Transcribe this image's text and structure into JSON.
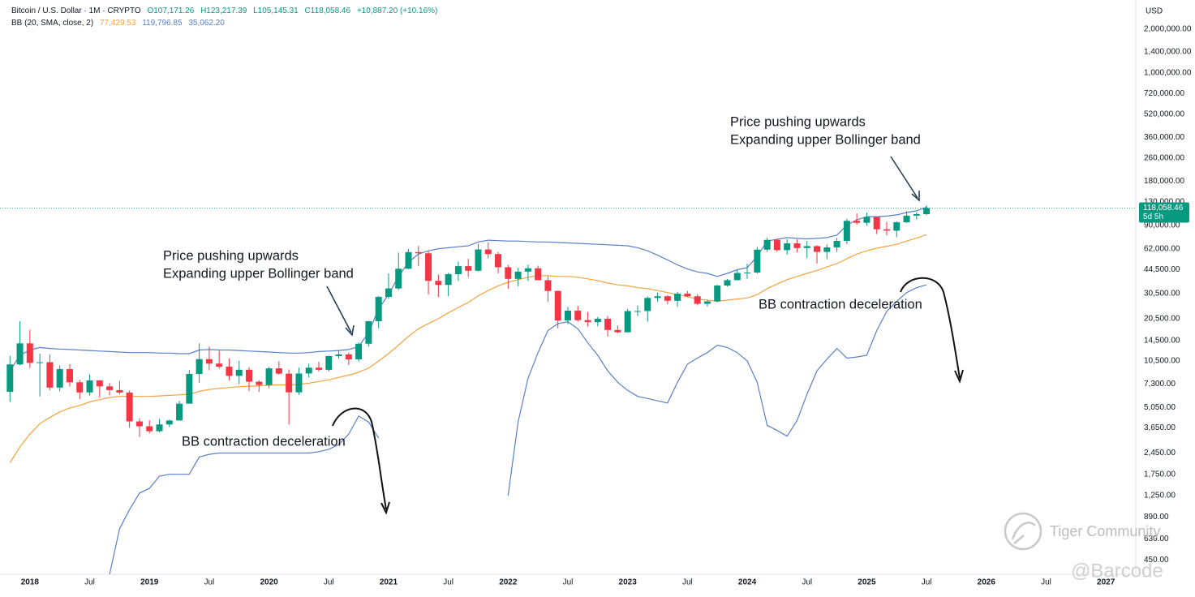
{
  "chart_data": {
    "type": "candlestick",
    "header": {
      "symbol": "Bitcoin / U.S. Dollar · 1M · CRYPTO",
      "open": "O107,171.26",
      "high": "H123,217.39",
      "low": "L105,145.31",
      "close": "C118,058.46",
      "change": "+10,887.20 (+10.16%)"
    },
    "indicator": {
      "name": "BB (20, SMA, close, 2)",
      "basis": "77,429.53",
      "upper": "119,796.85",
      "lower": "35,062.20"
    },
    "currency": "USD",
    "last_price_label": "118,058.46",
    "countdown": "5d 5h",
    "annotations": [
      {
        "lines": [
          "Price pushing upwards",
          "Expanding upper Bollinger band"
        ]
      },
      {
        "lines": [
          "Price pushing upwards",
          "Expanding upper Bollinger band"
        ]
      },
      {
        "lines": [
          "BB contraction deceleration"
        ]
      },
      {
        "lines": [
          "BB contraction deceleration"
        ]
      }
    ],
    "watermarks": [
      "Tiger Community",
      "@Barcode"
    ],
    "log_scale": true,
    "up_color": "#089981",
    "down_color": "#f23645",
    "categories": [
      "2017-11",
      "2017-12",
      "2018-01",
      "2018-02",
      "2018-03",
      "2018-04",
      "2018-05",
      "2018-06",
      "2018-07",
      "2018-08",
      "2018-09",
      "2018-10",
      "2018-11",
      "2018-12",
      "2019-01",
      "2019-02",
      "2019-03",
      "2019-04",
      "2019-05",
      "2019-06",
      "2019-07",
      "2019-08",
      "2019-09",
      "2019-10",
      "2019-11",
      "2019-12",
      "2020-01",
      "2020-02",
      "2020-03",
      "2020-04",
      "2020-05",
      "2020-06",
      "2020-07",
      "2020-08",
      "2020-09",
      "2020-10",
      "2020-11",
      "2020-12",
      "2021-01",
      "2021-02",
      "2021-03",
      "2021-04",
      "2021-05",
      "2021-06",
      "2021-07",
      "2021-08",
      "2021-09",
      "2021-10",
      "2021-11",
      "2021-12",
      "2022-01",
      "2022-02",
      "2022-03",
      "2022-04",
      "2022-05",
      "2022-06",
      "2022-07",
      "2022-08",
      "2022-09",
      "2022-10",
      "2022-11",
      "2022-12",
      "2023-01",
      "2023-02",
      "2023-03",
      "2023-04",
      "2023-05",
      "2023-06",
      "2023-07",
      "2023-08",
      "2023-09",
      "2023-10",
      "2023-11",
      "2023-12",
      "2024-01",
      "2024-02",
      "2024-03",
      "2024-04",
      "2024-05",
      "2024-06",
      "2024-07",
      "2024-08",
      "2024-09",
      "2024-10",
      "2024-11",
      "2024-12",
      "2025-01",
      "2025-02",
      "2025-03",
      "2025-04",
      "2025-05",
      "2025-06",
      "2025-07"
    ],
    "open": [
      6450,
      9950,
      13880,
      10200,
      10300,
      6900,
      9240,
      7500,
      6390,
      7730,
      7030,
      6630,
      6370,
      4040,
      3740,
      3460,
      3850,
      4100,
      5350,
      8560,
      10820,
      10080,
      9600,
      8300,
      9150,
      7570,
      7190,
      9350,
      8600,
      6400,
      8620,
      9450,
      9140,
      11350,
      11650,
      10780,
      13800,
      19700,
      28950,
      33100,
      45200,
      58800,
      57700,
      37300,
      35000,
      41500,
      47100,
      43800,
      61300,
      57000,
      46300,
      38500,
      43200,
      45500,
      37700,
      31800,
      19950,
      23300,
      20050,
      19420,
      20490,
      17160,
      16540,
      23140,
      23150,
      28480,
      29250,
      27220,
      30470,
      29230,
      25940,
      26970,
      34650,
      37720,
      42280,
      42580,
      61130,
      71330,
      60640,
      67490,
      62680,
      64620,
      58970,
      63330,
      70220,
      96400,
      93430,
      102400,
      84350,
      82550,
      94200,
      104600,
      107171.26
    ],
    "high": [
      11400,
      19700,
      17200,
      11800,
      11700,
      9800,
      10000,
      7800,
      8500,
      7760,
      7400,
      7680,
      6590,
      4250,
      4120,
      4200,
      4150,
      5600,
      9100,
      13900,
      13200,
      12330,
      10940,
      10540,
      9520,
      7750,
      9560,
      10500,
      9200,
      9470,
      10080,
      10400,
      11450,
      12470,
      12050,
      14100,
      19850,
      29300,
      41950,
      58350,
      61780,
      64850,
      59600,
      41300,
      42300,
      50500,
      52900,
      67000,
      69000,
      59100,
      47990,
      45850,
      48200,
      47450,
      40000,
      31990,
      24700,
      25200,
      22800,
      21100,
      21480,
      18400,
      23950,
      25250,
      29200,
      31000,
      29800,
      31400,
      31800,
      30200,
      27500,
      35000,
      38450,
      44700,
      48970,
      64000,
      73800,
      72800,
      72000,
      71950,
      70000,
      65600,
      66500,
      73600,
      99800,
      108300,
      109600,
      102800,
      95000,
      95800,
      112000,
      110500,
      123217.39
    ],
    "low": [
      5500,
      9800,
      9400,
      6000,
      6600,
      6500,
      7000,
      5750,
      6100,
      5880,
      6100,
      6200,
      3650,
      3150,
      3350,
      3400,
      3700,
      4100,
      5350,
      7450,
      9070,
      9320,
      7710,
      7300,
      6520,
      6430,
      6850,
      8450,
      3850,
      6150,
      8100,
      8900,
      8900,
      10900,
      9850,
      10400,
      13200,
      17600,
      28100,
      32300,
      45000,
      47000,
      30000,
      28800,
      29300,
      37300,
      39600,
      43300,
      53250,
      42000,
      32900,
      34300,
      37200,
      37700,
      26700,
      17600,
      18800,
      19550,
      18150,
      18200,
      15480,
      16250,
      16500,
      21350,
      19550,
      26950,
      25800,
      24800,
      28850,
      25350,
      24900,
      26550,
      34100,
      37600,
      38500,
      41880,
      59000,
      59100,
      56500,
      58400,
      53500,
      49000,
      52550,
      58900,
      66800,
      90500,
      89200,
      78200,
      76600,
      74400,
      93300,
      98200,
      105145.31
    ],
    "close": [
      9950,
      13880,
      10200,
      10300,
      6900,
      9240,
      7500,
      6390,
      7730,
      7030,
      6630,
      6370,
      4040,
      3740,
      3460,
      3850,
      4100,
      5350,
      8560,
      10820,
      10080,
      9600,
      8300,
      9150,
      7570,
      7190,
      9350,
      8600,
      6400,
      8620,
      9450,
      9140,
      11350,
      11650,
      10780,
      13800,
      19700,
      28950,
      33100,
      45200,
      58800,
      57700,
      37300,
      35000,
      41500,
      47100,
      43800,
      61300,
      57000,
      46300,
      38500,
      43200,
      45500,
      37700,
      31800,
      19950,
      23300,
      20050,
      19420,
      20490,
      17160,
      16540,
      23140,
      23150,
      28480,
      29250,
      27220,
      30470,
      29230,
      25940,
      26970,
      34650,
      37720,
      42280,
      42580,
      61130,
      71330,
      60640,
      67490,
      62680,
      64620,
      58970,
      63330,
      70220,
      96400,
      93430,
      102400,
      84350,
      82550,
      94200,
      104600,
      107170,
      118058.46
    ],
    "series": [
      {
        "name": "Upper",
        "color": "#5b7fc7",
        "values": [
          9000,
          11500,
          12500,
          13000,
          12800,
          12700,
          12600,
          12500,
          12400,
          12300,
          12200,
          12100,
          12000,
          12000,
          12000,
          11900,
          11900,
          11800,
          11800,
          12500,
          12600,
          12500,
          12500,
          12400,
          12300,
          12200,
          12100,
          12000,
          11900,
          11900,
          12000,
          12200,
          12300,
          12400,
          12600,
          13200,
          16500,
          24000,
          30000,
          40000,
          50000,
          57000,
          60000,
          62000,
          63000,
          64000,
          65000,
          69000,
          71000,
          70500,
          70000,
          70000,
          69500,
          69000,
          69000,
          68500,
          68000,
          67500,
          67000,
          66500,
          66000,
          65500,
          65000,
          63000,
          60000,
          56000,
          52000,
          48000,
          45000,
          43000,
          42000,
          40000,
          42000,
          44500,
          46000,
          55000,
          70000,
          72000,
          74000,
          73000,
          72500,
          73000,
          74000,
          77000,
          90000,
          98000,
          103000,
          103000,
          104000,
          106000,
          110000,
          113000,
          119796.85
        ]
      },
      {
        "name": "Basis",
        "color": "#f4a340",
        "values": [
          2100,
          2700,
          3300,
          3900,
          4300,
          4700,
          5000,
          5200,
          5500,
          5700,
          5900,
          6000,
          6000,
          6000,
          6000,
          6050,
          6100,
          6150,
          6200,
          6500,
          6700,
          6800,
          6900,
          7000,
          7050,
          7100,
          7150,
          7200,
          7200,
          7250,
          7400,
          7600,
          7800,
          8100,
          8400,
          8800,
          9400,
          10500,
          11800,
          13500,
          15500,
          17500,
          19000,
          20500,
          22500,
          24500,
          26500,
          29500,
          32000,
          34500,
          36500,
          38000,
          39500,
          40500,
          40500,
          40000,
          40000,
          39500,
          38500,
          37500,
          36000,
          35000,
          34500,
          33500,
          33000,
          32000,
          31000,
          30000,
          29000,
          28000,
          27500,
          27000,
          27500,
          28000,
          28500,
          30000,
          33000,
          35500,
          38000,
          40000,
          42000,
          44000,
          46500,
          49000,
          53000,
          57000,
          60000,
          62500,
          64500,
          66500,
          70000,
          73500,
          77429.53
        ]
      },
      {
        "name": "Lower",
        "color": "#5b7fc7",
        "values": [
          null,
          null,
          null,
          null,
          null,
          null,
          null,
          null,
          null,
          null,
          360,
          740,
          1000,
          1300,
          1400,
          1700,
          1750,
          1750,
          1750,
          2300,
          2400,
          2450,
          2450,
          2450,
          2450,
          2450,
          2450,
          2450,
          2450,
          2450,
          2450,
          2500,
          2600,
          2800,
          3300,
          4400,
          4000,
          3100,
          null,
          null,
          null,
          null,
          null,
          null,
          null,
          null,
          null,
          null,
          null,
          null,
          1250,
          4000,
          8000,
          12000,
          17000,
          19000,
          19500,
          17500,
          14000,
          11500,
          9000,
          7500,
          6600,
          6000,
          5800,
          5600,
          5400,
          7500,
          10000,
          11000,
          12000,
          13500,
          13000,
          12000,
          10500,
          7500,
          3800,
          3500,
          3200,
          4100,
          6200,
          9000,
          10800,
          12800,
          11000,
          11200,
          11500,
          17000,
          23000,
          27000,
          31000,
          33500,
          35062.2
        ]
      }
    ],
    "xlim": [
      "2017-10",
      "2027-04"
    ],
    "xticks": [
      {
        "value": "2018-01",
        "label": "2018"
      },
      {
        "value": "2018-07",
        "label": "Jul"
      },
      {
        "value": "2019-01",
        "label": "2019"
      },
      {
        "value": "2019-07",
        "label": "Jul"
      },
      {
        "value": "2020-01",
        "label": "2020"
      },
      {
        "value": "2020-07",
        "label": "Jul"
      },
      {
        "value": "2021-01",
        "label": "2021"
      },
      {
        "value": "2021-07",
        "label": "Jul"
      },
      {
        "value": "2022-01",
        "label": "2022"
      },
      {
        "value": "2022-07",
        "label": "Jul"
      },
      {
        "value": "2023-01",
        "label": "2023"
      },
      {
        "value": "2023-07",
        "label": "Jul"
      },
      {
        "value": "2024-01",
        "label": "2024"
      },
      {
        "value": "2024-07",
        "label": "Jul"
      },
      {
        "value": "2025-01",
        "label": "2025"
      },
      {
        "value": "2025-07",
        "label": "Jul"
      },
      {
        "value": "2026-01",
        "label": "2026"
      },
      {
        "value": "2026-07",
        "label": "Jul"
      },
      {
        "value": "2027-01",
        "label": "2027"
      }
    ],
    "ylim": [
      360,
      3170000
    ],
    "yticks": [
      {
        "value": 2000000,
        "label": "2,000,000.00"
      },
      {
        "value": 1400000,
        "label": "1,400,000.00"
      },
      {
        "value": 1000000,
        "label": "1,000,000.00"
      },
      {
        "value": 720000,
        "label": "720,000.00"
      },
      {
        "value": 520000,
        "label": "520,000.00"
      },
      {
        "value": 360000,
        "label": "360,000.00"
      },
      {
        "value": 260000,
        "label": "260,000.00"
      },
      {
        "value": 180000,
        "label": "180,000.00"
      },
      {
        "value": 130000,
        "label": "130,000.00"
      },
      {
        "value": 90000,
        "label": "90,000.00"
      },
      {
        "value": 62000,
        "label": "62,000.00"
      },
      {
        "value": 44500,
        "label": "44,500.00"
      },
      {
        "value": 30500,
        "label": "30,500.00"
      },
      {
        "value": 20500,
        "label": "20,500.00"
      },
      {
        "value": 14500,
        "label": "14,500.00"
      },
      {
        "value": 10500,
        "label": "10,500.00"
      },
      {
        "value": 7300,
        "label": "7,300.00"
      },
      {
        "value": 5050,
        "label": "5,050.00"
      },
      {
        "value": 3650,
        "label": "3,650.00"
      },
      {
        "value": 2450,
        "label": "2,450.00"
      },
      {
        "value": 1750,
        "label": "1,750.00"
      },
      {
        "value": 1250,
        "label": "1,250.00"
      },
      {
        "value": 890,
        "label": "890.00"
      },
      {
        "value": 630,
        "label": "630.00"
      },
      {
        "value": 450,
        "label": "450.00"
      }
    ]
  }
}
